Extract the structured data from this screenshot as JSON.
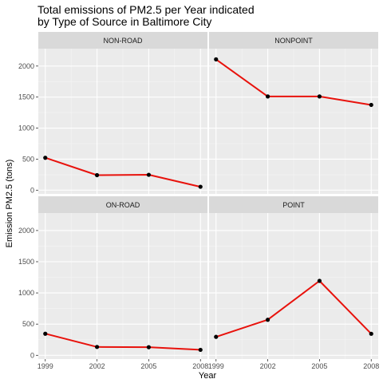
{
  "chart_data": {
    "type": "line",
    "title_line1": "Total emissions of PM2.5 per Year indicated",
    "title_line2": "by Type of Source in Baltimore City",
    "xlabel": "Year",
    "ylabel": "Emission PM2.5 (tons)",
    "x": [
      1999,
      2002,
      2005,
      2008
    ],
    "x_tick_labels": [
      "1999",
      "2002",
      "2005",
      "2008"
    ],
    "y_ticks": [
      0,
      500,
      1000,
      1500,
      2000
    ],
    "y_tick_labels": [
      "0",
      "500",
      "1000",
      "1500",
      "2000"
    ],
    "ylim": [
      -60,
      2280
    ],
    "grid": true,
    "line_color": "#e8120c",
    "point_color": "#000000",
    "panel_bg": "#ebebeb",
    "strip_bg": "#d9d9d9",
    "panels": [
      {
        "label": "NON-ROAD",
        "values": [
          522,
          242,
          248,
          55
        ]
      },
      {
        "label": "NONPOINT",
        "values": [
          2108,
          1510,
          1510,
          1374
        ]
      },
      {
        "label": "ON-ROAD",
        "values": [
          346,
          134,
          130,
          88
        ]
      },
      {
        "label": "POINT",
        "values": [
          296,
          570,
          1193,
          345
        ]
      }
    ]
  }
}
